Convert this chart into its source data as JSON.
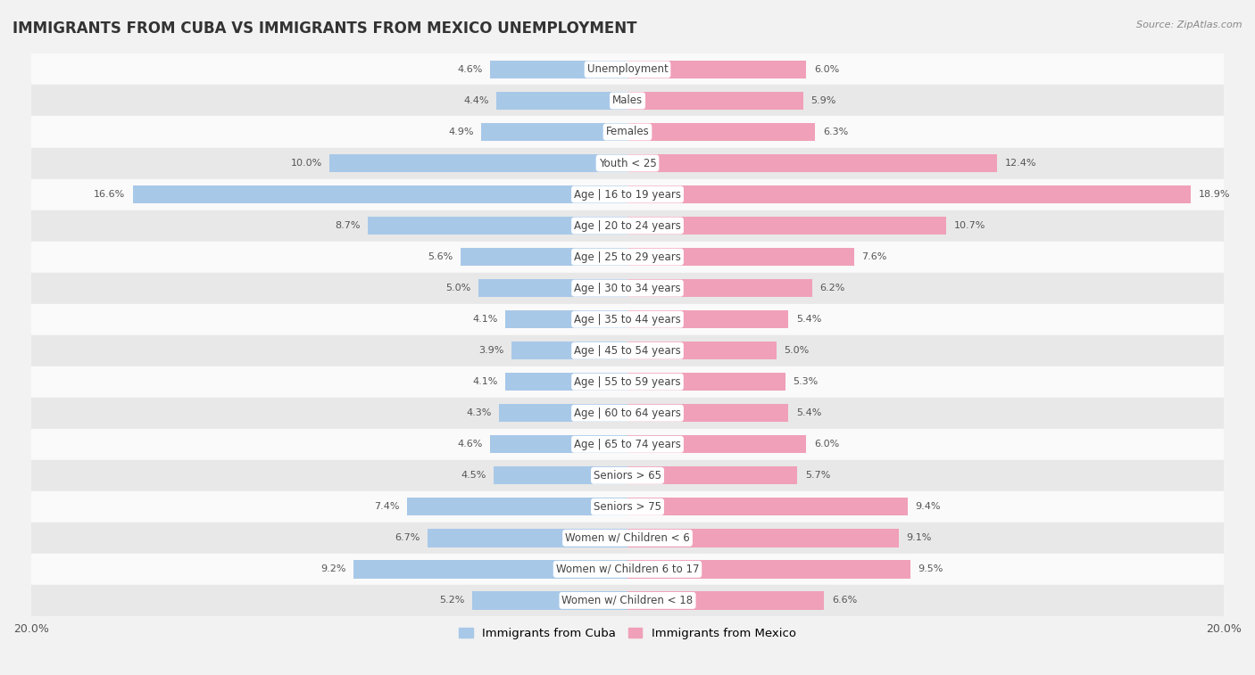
{
  "title": "IMMIGRANTS FROM CUBA VS IMMIGRANTS FROM MEXICO UNEMPLOYMENT",
  "source": "Source: ZipAtlas.com",
  "categories": [
    "Unemployment",
    "Males",
    "Females",
    "Youth < 25",
    "Age | 16 to 19 years",
    "Age | 20 to 24 years",
    "Age | 25 to 29 years",
    "Age | 30 to 34 years",
    "Age | 35 to 44 years",
    "Age | 45 to 54 years",
    "Age | 55 to 59 years",
    "Age | 60 to 64 years",
    "Age | 65 to 74 years",
    "Seniors > 65",
    "Seniors > 75",
    "Women w/ Children < 6",
    "Women w/ Children 6 to 17",
    "Women w/ Children < 18"
  ],
  "cuba_values": [
    4.6,
    4.4,
    4.9,
    10.0,
    16.6,
    8.7,
    5.6,
    5.0,
    4.1,
    3.9,
    4.1,
    4.3,
    4.6,
    4.5,
    7.4,
    6.7,
    9.2,
    5.2
  ],
  "mexico_values": [
    6.0,
    5.9,
    6.3,
    12.4,
    18.9,
    10.7,
    7.6,
    6.2,
    5.4,
    5.0,
    5.3,
    5.4,
    6.0,
    5.7,
    9.4,
    9.1,
    9.5,
    6.6
  ],
  "cuba_color": "#a8c8e8",
  "mexico_color": "#f0a0b8",
  "cuba_label": "Immigrants from Cuba",
  "mexico_label": "Immigrants from Mexico",
  "xlim": 20.0,
  "background_color": "#f2f2f2",
  "row_color_light": "#fafafa",
  "row_color_dark": "#e8e8e8",
  "title_fontsize": 12,
  "label_fontsize": 8.5,
  "value_fontsize": 8,
  "bar_height": 0.58
}
